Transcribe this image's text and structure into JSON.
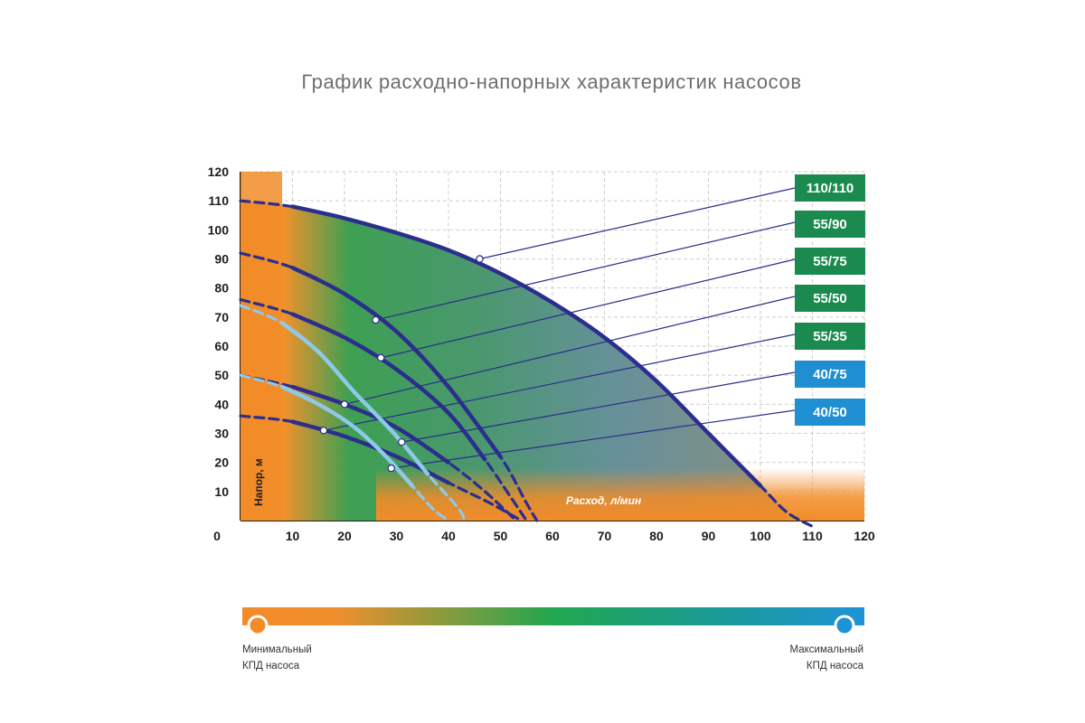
{
  "title": "График расходно-напорных характеристик насосов",
  "colors": {
    "pump_curve": "#2b2e8c",
    "pump_curve_light": "#8ec9ea",
    "badge_green": "#1a8a4e",
    "badge_blue": "#1f8fd1",
    "efficiency_min": "#f28c28",
    "efficiency_mid": "#21a74f",
    "efficiency_max": "#1e93d6",
    "grid": "#cfcfcf"
  },
  "legend": {
    "min_label": [
      "Минимальный",
      "КПД насоса"
    ],
    "max_label": [
      "Максимальный",
      "КПД насоса"
    ]
  },
  "chart_data": {
    "type": "line",
    "title": "График расходно-напорных характеристик насосов",
    "xlabel": "Расход, л/мин",
    "ylabel": "Напор, м",
    "xlim": [
      0,
      120
    ],
    "ylim": [
      0,
      120
    ],
    "x_ticks": [
      0,
      10,
      20,
      30,
      40,
      50,
      60,
      70,
      80,
      90,
      100,
      110,
      120
    ],
    "y_ticks": [
      10,
      20,
      30,
      40,
      50,
      60,
      70,
      80,
      90,
      100,
      110,
      120
    ],
    "grid": true,
    "legend_position": "right",
    "series": [
      {
        "name": "110/110",
        "color": "#1a8a4e",
        "marker": [
          46,
          90
        ],
        "points": [
          [
            0,
            110
          ],
          [
            10,
            108
          ],
          [
            20,
            104
          ],
          [
            30,
            99
          ],
          [
            40,
            93
          ],
          [
            50,
            85
          ],
          [
            60,
            75
          ],
          [
            70,
            63
          ],
          [
            80,
            48
          ],
          [
            90,
            30
          ],
          [
            100,
            12
          ],
          [
            105,
            3
          ],
          [
            110,
            -2
          ]
        ]
      },
      {
        "name": "55/90",
        "color": "#1a8a4e",
        "marker": [
          26,
          69
        ],
        "points": [
          [
            0,
            92
          ],
          [
            10,
            87
          ],
          [
            20,
            78
          ],
          [
            30,
            65
          ],
          [
            40,
            46
          ],
          [
            50,
            22
          ],
          [
            55,
            6
          ],
          [
            57,
            0
          ]
        ]
      },
      {
        "name": "55/75",
        "color": "#1a8a4e",
        "marker": [
          27,
          56
        ],
        "points": [
          [
            0,
            76
          ],
          [
            10,
            71
          ],
          [
            20,
            63
          ],
          [
            30,
            52
          ],
          [
            40,
            37
          ],
          [
            47,
            21
          ],
          [
            52,
            8
          ],
          [
            55,
            0
          ]
        ]
      },
      {
        "name": "55/50",
        "color": "#1a8a4e",
        "marker": [
          20,
          40
        ],
        "points": [
          [
            0,
            50
          ],
          [
            10,
            46
          ],
          [
            20,
            40
          ],
          [
            30,
            32
          ],
          [
            40,
            20
          ],
          [
            47,
            10
          ],
          [
            53,
            0
          ]
        ]
      },
      {
        "name": "55/35",
        "color": "#1a8a4e",
        "marker": [
          16,
          31
        ],
        "points": [
          [
            0,
            36
          ],
          [
            10,
            34
          ],
          [
            20,
            29
          ],
          [
            30,
            22
          ],
          [
            40,
            13
          ],
          [
            48,
            6
          ],
          [
            54,
            0
          ]
        ]
      },
      {
        "name": "40/75",
        "color": "#1f8fd1",
        "marker": [
          31,
          27
        ],
        "points": [
          [
            0,
            74
          ],
          [
            8,
            68
          ],
          [
            15,
            58
          ],
          [
            22,
            44
          ],
          [
            30,
            29
          ],
          [
            36,
            16
          ],
          [
            42,
            4
          ],
          [
            43,
            0
          ]
        ]
      },
      {
        "name": "40/50",
        "color": "#1f8fd1",
        "marker": [
          29,
          18
        ],
        "points": [
          [
            0,
            50
          ],
          [
            8,
            46
          ],
          [
            15,
            40
          ],
          [
            22,
            32
          ],
          [
            28,
            22
          ],
          [
            33,
            12
          ],
          [
            37,
            4
          ],
          [
            40,
            0
          ]
        ]
      }
    ]
  }
}
